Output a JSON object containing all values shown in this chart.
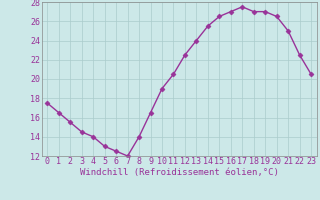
{
  "x": [
    0,
    1,
    2,
    3,
    4,
    5,
    6,
    7,
    8,
    9,
    10,
    11,
    12,
    13,
    14,
    15,
    16,
    17,
    18,
    19,
    20,
    21,
    22,
    23
  ],
  "y": [
    17.5,
    16.5,
    15.5,
    14.5,
    14.0,
    13.0,
    12.5,
    12.0,
    14.0,
    16.5,
    19.0,
    20.5,
    22.5,
    24.0,
    25.5,
    26.5,
    27.0,
    27.5,
    27.0,
    27.0,
    26.5,
    25.0,
    22.5,
    20.5
  ],
  "line_color": "#993399",
  "marker": "D",
  "marker_size": 2.5,
  "bg_color": "#cce8e8",
  "grid_color": "#aacccc",
  "xlabel": "Windchill (Refroidissement éolien,°C)",
  "ylabel": "",
  "ylim": [
    12,
    28
  ],
  "xlim_min": -0.5,
  "xlim_max": 23.5,
  "yticks": [
    12,
    14,
    16,
    18,
    20,
    22,
    24,
    26,
    28
  ],
  "xticks": [
    0,
    1,
    2,
    3,
    4,
    5,
    6,
    7,
    8,
    9,
    10,
    11,
    12,
    13,
    14,
    15,
    16,
    17,
    18,
    19,
    20,
    21,
    22,
    23
  ],
  "axis_label_color": "#993399",
  "tick_color": "#993399",
  "font_size_xlabel": 6.5,
  "font_size_ticks": 6.0,
  "linewidth": 1.0
}
